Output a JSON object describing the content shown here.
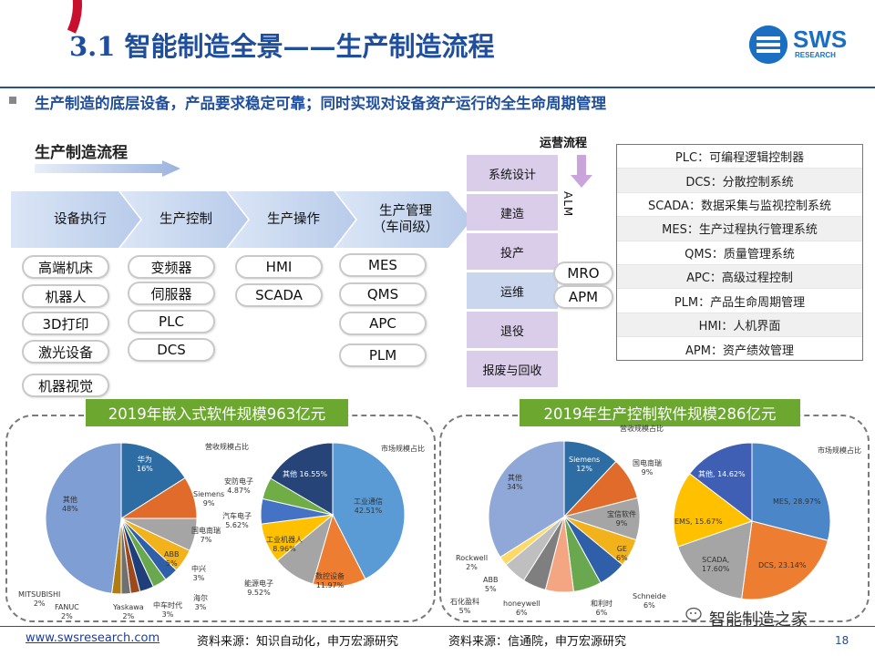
{
  "header": {
    "title": "3.1 智能制造全景——生产制造流程",
    "logo_text": "SWS",
    "logo_sub": "RESEARCH",
    "subtitle": "生产制造的底层设备，产品要求稳定可靠；同时实现对设备资产运行的全生命周期管理"
  },
  "flow": {
    "heading": "生产制造流程",
    "stages": [
      {
        "label": "设备执行",
        "items": [
          "高端机床",
          "机器人",
          "3D打印",
          "激光设备",
          "机器视觉"
        ]
      },
      {
        "label": "生产控制",
        "items": [
          "变频器",
          "伺服器",
          "PLC",
          "DCS"
        ]
      },
      {
        "label": "生产操作",
        "items": [
          "HMI",
          "SCADA"
        ]
      },
      {
        "label": "生产管理\n（车间级）",
        "label_line1": "生产管理",
        "label_line2": "（车间级）",
        "items": [
          "MES",
          "QMS",
          "APC",
          "PLM"
        ]
      }
    ]
  },
  "ops": {
    "heading": "运营流程",
    "steps": [
      "系统设计",
      "建造",
      "投产",
      "运维",
      "退役",
      "报废与回收"
    ],
    "alm_label": "ALM",
    "side_items": [
      "MRO",
      "APM"
    ]
  },
  "glossary": [
    "PLC：可编程逻辑控制器",
    "DCS：分散控制系统",
    "SCADA：数据采集与监视控制系统",
    "MES：生产过程执行管理系统",
    "QMS：质量管理系统",
    "APC：高级过程控制",
    "PLM：产品生命周期管理",
    "HMI：人机界面",
    "APM：资产绩效管理"
  ],
  "panels": [
    {
      "title": "2019年嵌入式软件规模963亿元"
    },
    {
      "title": "2019年生产控制软件规模286亿元"
    }
  ],
  "chart_data": [
    {
      "type": "pie",
      "title": "营收规模占比",
      "slices": [
        {
          "name": "华为",
          "value": 16,
          "label": "16%",
          "color": "#2e6da4"
        },
        {
          "name": "Siemens",
          "value": 9,
          "label": "9%",
          "color": "#e06b2a"
        },
        {
          "name": "国电南瑞",
          "value": 7,
          "label": "7%",
          "color": "#a5a5a5"
        },
        {
          "name": "ABB",
          "value": 5,
          "label": "5%",
          "color": "#f2b21c"
        },
        {
          "name": "中兴",
          "value": 3,
          "label": "3%",
          "color": "#2e5fa8"
        },
        {
          "name": "海尔",
          "value": 3,
          "label": "3%",
          "color": "#6aa84f"
        },
        {
          "name": "中车时代",
          "value": 3,
          "label": "3%",
          "color": "#1f3f7a"
        },
        {
          "name": "Yaskawa",
          "value": 2,
          "label": "2%",
          "color": "#9c4a1c"
        },
        {
          "name": "FANUC",
          "value": 2,
          "label": "2%",
          "color": "#707070"
        },
        {
          "name": "MITSUBISHI",
          "value": 2,
          "label": "2%",
          "color": "#b07d10"
        },
        {
          "name": "其他",
          "value": 48,
          "label": "48%",
          "color": "#7f9ed4"
        }
      ]
    },
    {
      "type": "pie",
      "title": "市场规模占比",
      "slices": [
        {
          "name": "工业通信",
          "value": 42.51,
          "label": "42.51%",
          "color": "#5b9bd5"
        },
        {
          "name": "数控设备",
          "value": 11.97,
          "label": "11.97%",
          "color": "#ed7d31"
        },
        {
          "name": "能源电子",
          "value": 9.52,
          "label": "9.52%",
          "color": "#a5a5a5"
        },
        {
          "name": "工业机器人",
          "value": 8.96,
          "label": "8.96%",
          "color": "#ffc000"
        },
        {
          "name": "汽车电子",
          "value": 5.62,
          "label": "5.62%",
          "color": "#4472c4"
        },
        {
          "name": "安防电子",
          "value": 4.87,
          "label": "4.87%",
          "color": "#70ad47"
        },
        {
          "name": "其他",
          "value": 16.55,
          "label": "16.55%",
          "color": "#264478"
        }
      ]
    },
    {
      "type": "pie",
      "title": "营收规模占比",
      "slices": [
        {
          "name": "Siemens",
          "value": 12,
          "label": "12%",
          "color": "#2e6da4"
        },
        {
          "name": "国电南瑞",
          "value": 9,
          "label": "9%",
          "color": "#e06b2a"
        },
        {
          "name": "宝信软件",
          "value": 9,
          "label": "9%",
          "color": "#a5a5a5"
        },
        {
          "name": "GE",
          "value": 6,
          "label": "6%",
          "color": "#f2b21c"
        },
        {
          "name": "Schneide",
          "value": 6,
          "label": "6%",
          "color": "#2e5fa8"
        },
        {
          "name": "和利时",
          "value": 6,
          "label": "6%",
          "color": "#6aa84f"
        },
        {
          "name": "honeywell",
          "value": 6,
          "label": "6%",
          "color": "#f4a582"
        },
        {
          "name": "石化盈科",
          "value": 5,
          "label": "5%",
          "color": "#7f7f7f"
        },
        {
          "name": "ABB",
          "value": 5,
          "label": "5%",
          "color": "#bfbfbf"
        },
        {
          "name": "Rockwell",
          "value": 2,
          "label": "2%",
          "color": "#ffd966"
        },
        {
          "name": "其他",
          "value": 34,
          "label": "34%",
          "color": "#8fa8d8"
        }
      ]
    },
    {
      "type": "pie",
      "title": "市场规模占比",
      "slices": [
        {
          "name": "MES",
          "value": 28.97,
          "label": "28.97%",
          "color": "#4a86c8"
        },
        {
          "name": "DCS",
          "value": 23.14,
          "label": "23.14%",
          "color": "#ed7d31"
        },
        {
          "name": "SCADA",
          "value": 17.6,
          "label": "17.60%",
          "color": "#a5a5a5"
        },
        {
          "name": "EMS",
          "value": 15.67,
          "label": "15.67%",
          "color": "#ffc000"
        },
        {
          "name": "其他",
          "value": 14.62,
          "label": "14.62%",
          "color": "#3f5fb5"
        }
      ]
    }
  ],
  "footer": {
    "url": "www.swsresearch.com",
    "source1": "资料来源：知识自动化，申万宏源研究",
    "source2": "资料来源：信通院，申万宏源研究",
    "wechat": "智能制造之家",
    "page": "18"
  }
}
